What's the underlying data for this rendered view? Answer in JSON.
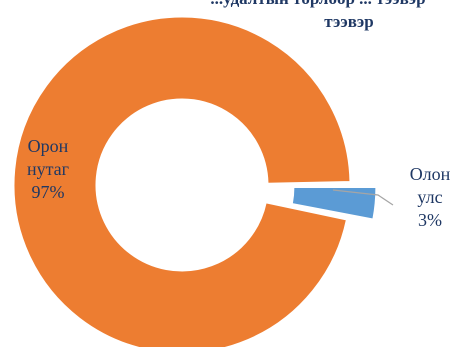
{
  "chart_data": {
    "type": "pie",
    "subtype": "doughnut",
    "title_lines": [
      "...удалтын төрлөөр ... тээвэр",
      "тээвэр"
    ],
    "categories": [
      "Орон нутаг",
      "Олон улс"
    ],
    "values": [
      97,
      3
    ],
    "labels": [
      {
        "lines": [
          "Орон",
          "нутаг",
          "97%"
        ]
      },
      {
        "lines": [
          "Олон",
          "улс",
          "3%"
        ]
      }
    ],
    "colors": [
      "#ED7D31",
      "#5B9BD5"
    ],
    "label_color": "#1F3864",
    "leader_line_color": "#A5A5A5",
    "exploded_slice": "Олон улс"
  }
}
